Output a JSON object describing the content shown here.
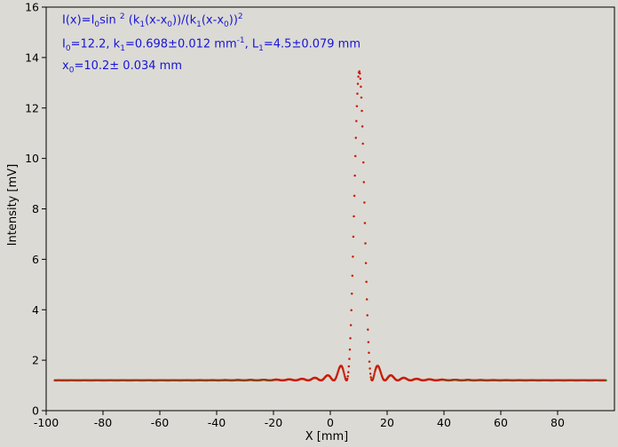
{
  "chart_data": {
    "type": "scatter",
    "title": "",
    "xlabel": "X [mm]",
    "ylabel": "Intensity [mV]",
    "xlim": [
      -100,
      100
    ],
    "ylim": [
      0,
      16
    ],
    "xticks": [
      -100,
      -80,
      -60,
      -40,
      -20,
      0,
      20,
      40,
      60,
      80
    ],
    "yticks": [
      0,
      2,
      4,
      6,
      8,
      10,
      12,
      14,
      16
    ],
    "grid": false,
    "legend": "none",
    "colors": {
      "data": "#c81e00",
      "fit": "#2e7d1a",
      "annotation": "#1515d6",
      "background": "#dcdad5"
    },
    "model": {
      "baseline": 1.2,
      "peak": 13.45,
      "x0": 10.2,
      "width": 4.5
    },
    "x_range": [
      -97,
      97
    ],
    "annotations": {
      "line1": {
        "a": "I(x)=I",
        "b": "0",
        "c": "sin ",
        "d": "2",
        "e": " (k",
        "f": "1",
        "g": "(x-x",
        "h": "0",
        "i": "))/(k",
        "j": "1",
        "k": "(x-x",
        "l": "0",
        "m": "))",
        "n": "2"
      },
      "line2": {
        "a": "I",
        "b": "0",
        "c": "=12.2,  k",
        "d": "1",
        "e": "=0.698±0.012 mm",
        "f": "-1",
        "g": ",   L",
        "h": "1",
        "i": "=4.5±0.079 mm"
      },
      "line3": {
        "a": "x",
        "b": "0",
        "c": "=10.2±   0.034 mm"
      }
    }
  }
}
